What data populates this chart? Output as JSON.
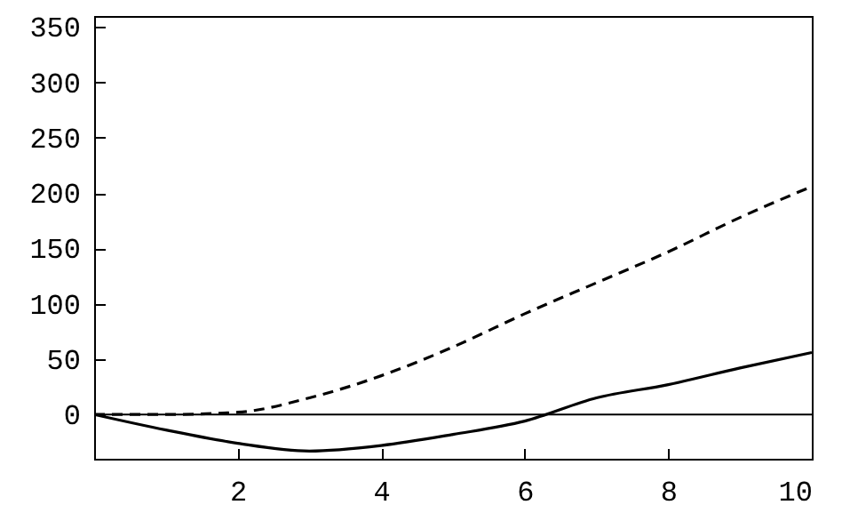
{
  "chart_data": {
    "type": "line",
    "x": [
      0,
      1,
      2,
      3,
      4,
      5,
      6,
      7,
      8,
      9,
      10
    ],
    "series": [
      {
        "color": "#000000",
        "line_style": "solid",
        "values": [
          0,
          -14,
          -26,
          -33,
          -28,
          -18,
          -6,
          15,
          27,
          42,
          56
        ]
      },
      {
        "color": "#000000",
        "line_style": "dashed",
        "values": [
          0,
          0,
          2,
          15,
          35,
          61,
          91,
          119,
          147,
          178,
          206
        ]
      }
    ],
    "xlim": [
      0,
      10
    ],
    "xticks": [
      2,
      4,
      6,
      8,
      10
    ],
    "ylim": [
      -40,
      360
    ],
    "yticks": [
      0,
      50,
      100,
      150,
      200,
      250,
      300,
      350
    ],
    "ref_lines": [
      {
        "axis": "y",
        "value": 0,
        "color": "#000000",
        "line_style": "solid"
      }
    ],
    "grid": false,
    "marker": "none"
  }
}
